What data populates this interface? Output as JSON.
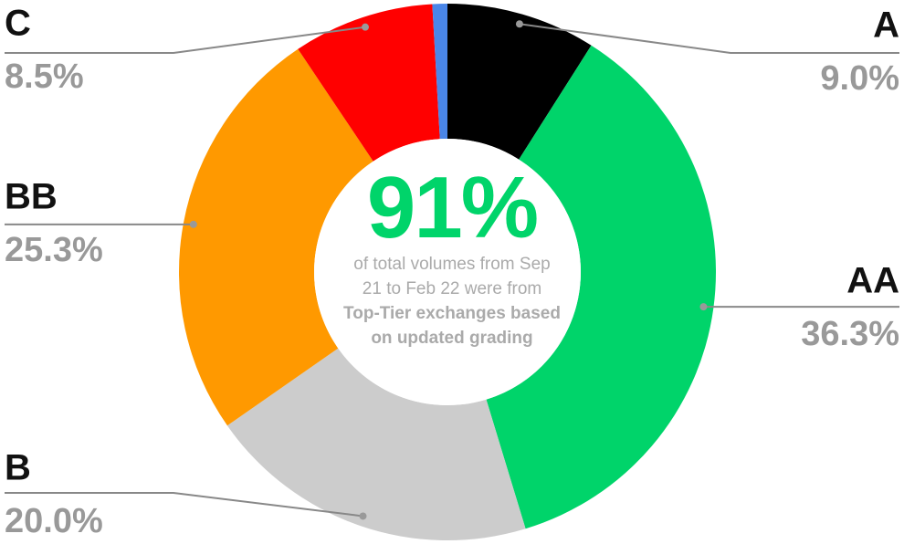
{
  "chart_data": {
    "type": "donut",
    "categories": [
      "A",
      "AA",
      "B",
      "BB",
      "C",
      null
    ],
    "values": [
      9.0,
      36.3,
      20.0,
      25.3,
      8.5,
      0.9
    ],
    "value_labels": [
      "9.0%",
      "36.3%",
      "20.0%",
      "25.3%",
      "8.5%",
      null
    ],
    "colors": [
      "#000000",
      "#00d46a",
      "#cccccc",
      "#ff9900",
      "#ff0000",
      "#4a86e8"
    ],
    "center_headline": "91%",
    "center_text": [
      "of total volumes from Sep 21 to Feb 22  were from ",
      "Top-Tier exchanges based on updated grading"
    ]
  }
}
